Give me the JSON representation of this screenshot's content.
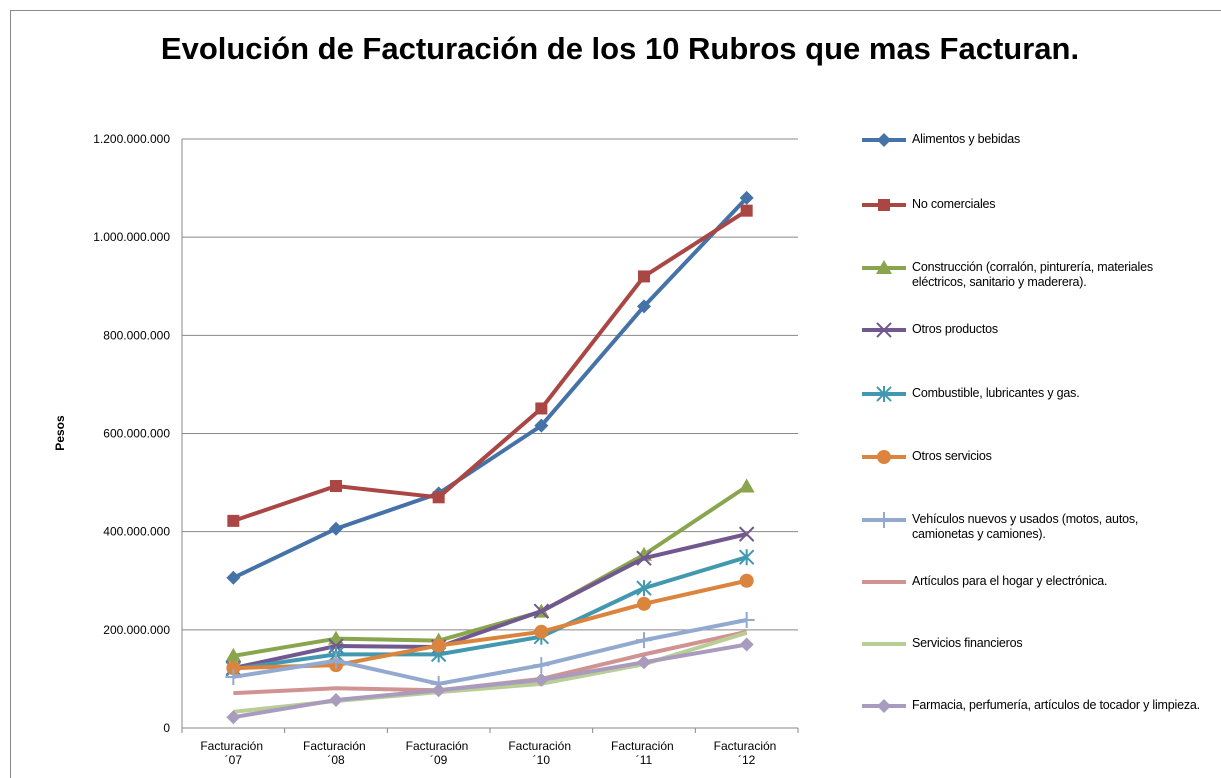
{
  "chart_data": {
    "type": "line",
    "title": "Evolución de Facturación de los 10 Rubros que mas Facturan.",
    "y_label": "Pesos",
    "categories": [
      "Facturación ´07",
      "Facturación ´08",
      "Facturación ´09",
      "Facturación ´10",
      "Facturación ´11",
      "Facturación ´12"
    ],
    "ylim": [
      0,
      1200000000
    ],
    "yticks": [
      0,
      {
        "value": 200000000,
        "label": "200.000.000"
      },
      {
        "value": 400000000,
        "label": "400.000.000"
      },
      {
        "value": 600000000,
        "label": "600.000.000"
      },
      {
        "value": 800000000,
        "label": "800.000.000"
      },
      {
        "value": 1000000000,
        "label": "1.000.000.000"
      },
      {
        "value": 1200000000,
        "label": "1.200.000.000"
      }
    ],
    "grid": true,
    "legend": "right",
    "series": [
      {
        "name": "Alimentos y bebidas",
        "color": "#4572A7",
        "marker": "diamond",
        "values": [
          306000000,
          406000000,
          478000000,
          616000000,
          859000000,
          1080000000
        ]
      },
      {
        "name": "No comerciales",
        "color": "#AA4643",
        "marker": "square",
        "values": [
          422000000,
          493000000,
          470000000,
          651000000,
          920000000,
          1054000000
        ]
      },
      {
        "name": "Construcción (corralón, pinturería, materiales eléctricos, sanitario y maderera).",
        "color": "#89A54E",
        "marker": "triangle",
        "values": [
          147000000,
          182000000,
          178000000,
          237000000,
          353000000,
          492000000
        ]
      },
      {
        "name": "Otros productos",
        "color": "#71588F",
        "marker": "x",
        "values": [
          122000000,
          167000000,
          165000000,
          238000000,
          346000000,
          395000000
        ]
      },
      {
        "name": "Combustible, lubricantes y gas.",
        "color": "#4198AF",
        "marker": "asterisk",
        "values": [
          120000000,
          150000000,
          150000000,
          186000000,
          285000000,
          348000000
        ]
      },
      {
        "name": "Otros servicios",
        "color": "#DB843D",
        "marker": "circle",
        "values": [
          122000000,
          128000000,
          168000000,
          196000000,
          253000000,
          300000000
        ]
      },
      {
        "name": "Vehículos nuevos y usados (motos, autos, camionetas y camiones).",
        "color": "#93A9CF",
        "marker": "plus",
        "values": [
          104000000,
          137000000,
          90000000,
          128000000,
          179000000,
          220000000
        ]
      },
      {
        "name": "Artículos para el hogar y electrónica.",
        "color": "#D19392",
        "marker": "none",
        "values": [
          71000000,
          81000000,
          77000000,
          100000000,
          150000000,
          196000000
        ]
      },
      {
        "name": "Servicios financieros",
        "color": "#B9CD96",
        "marker": "none",
        "values": [
          33000000,
          55000000,
          73000000,
          90000000,
          130000000,
          194000000
        ]
      },
      {
        "name": "Farmacia, perfumería, artículos de tocador y limpieza.",
        "color": "#A99BBD",
        "marker": "diamond",
        "values": [
          22000000,
          57000000,
          77000000,
          98000000,
          134000000,
          170000000
        ]
      }
    ]
  }
}
